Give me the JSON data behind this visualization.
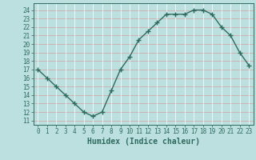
{
  "x": [
    0,
    1,
    2,
    3,
    4,
    5,
    6,
    7,
    8,
    9,
    10,
    11,
    12,
    13,
    14,
    15,
    16,
    17,
    18,
    19,
    20,
    21,
    22,
    23
  ],
  "y": [
    17,
    16,
    15,
    14,
    13,
    12,
    11.5,
    12,
    14.5,
    17,
    18.5,
    20.5,
    21.5,
    22.5,
    23.5,
    23.5,
    23.5,
    24,
    24,
    23.5,
    22,
    21,
    19,
    17.5
  ],
  "line_color": "#2e6b5e",
  "marker": "+",
  "marker_size": 4,
  "line_width": 1.0,
  "background_color": "#bce0e0",
  "grid_color": "#d4a0a0",
  "grid_color_v": "#ffffff",
  "title": "",
  "xlabel": "Humidex (Indice chaleur)",
  "ylabel": "",
  "xlim": [
    -0.5,
    23.5
  ],
  "ylim": [
    10.5,
    24.8
  ],
  "xticks": [
    0,
    1,
    2,
    3,
    4,
    5,
    6,
    7,
    8,
    9,
    10,
    11,
    12,
    13,
    14,
    15,
    16,
    17,
    18,
    19,
    20,
    21,
    22,
    23
  ],
  "yticks": [
    11,
    12,
    13,
    14,
    15,
    16,
    17,
    18,
    19,
    20,
    21,
    22,
    23,
    24
  ],
  "tick_color": "#2e6b5e",
  "label_fontsize": 5.5,
  "xlabel_fontsize": 7,
  "markeredgewidth": 1.0
}
